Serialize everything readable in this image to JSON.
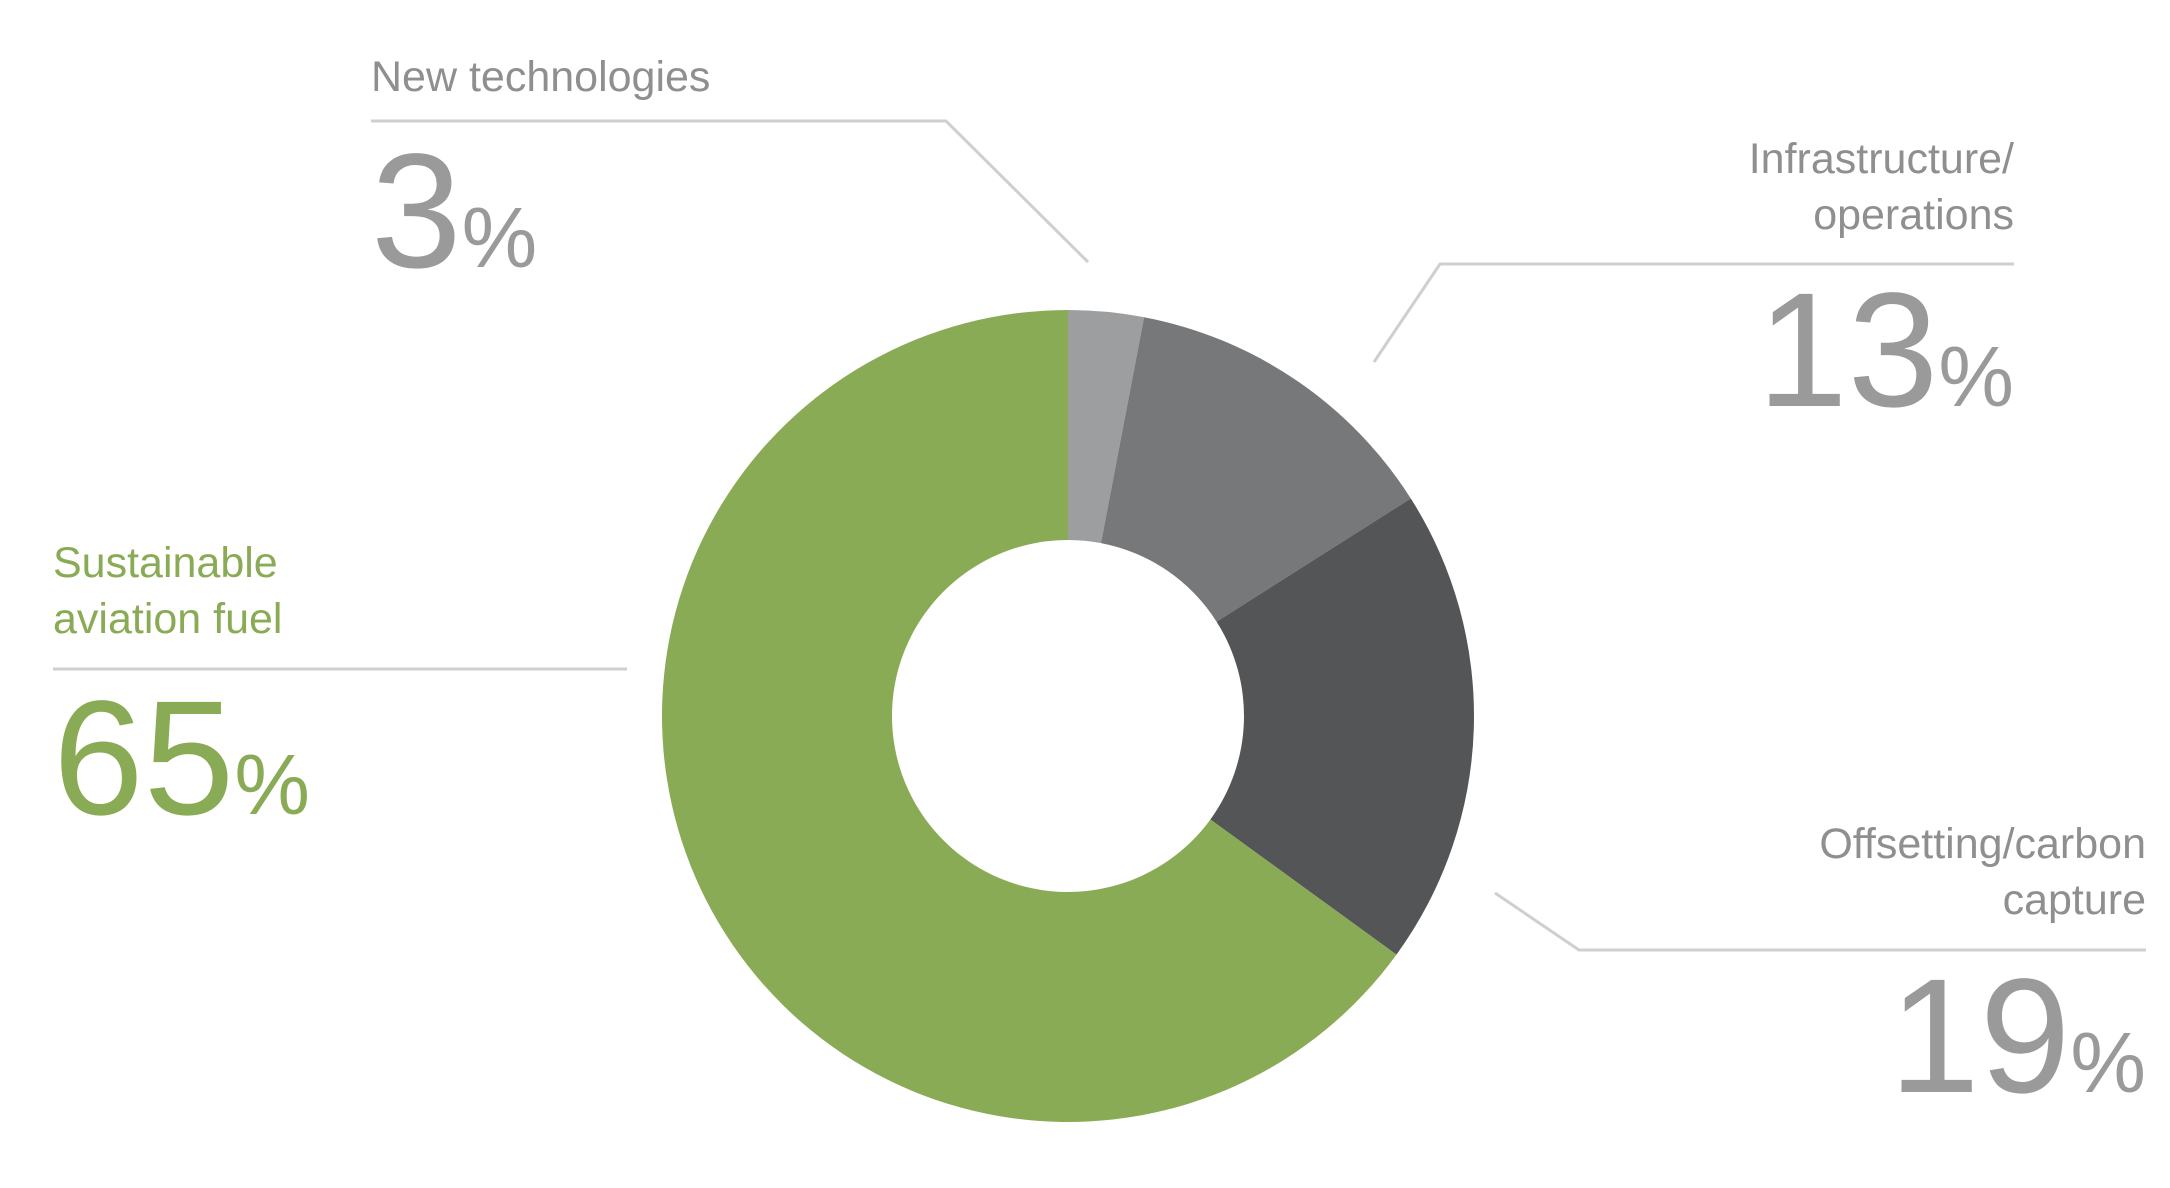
{
  "chart_data": {
    "type": "donut",
    "categories": [
      "New technologies",
      "Infrastructure/\noperations",
      "Offsetting/carbon\ncapture",
      "Sustainable\naviation fuel"
    ],
    "values": [
      3,
      13,
      19,
      65
    ],
    "value_labels": [
      "3%",
      "13%",
      "19%",
      "65%"
    ],
    "colors": [
      "#9d9ea0",
      "#77787a",
      "#545557",
      "#8aab55"
    ]
  }
}
